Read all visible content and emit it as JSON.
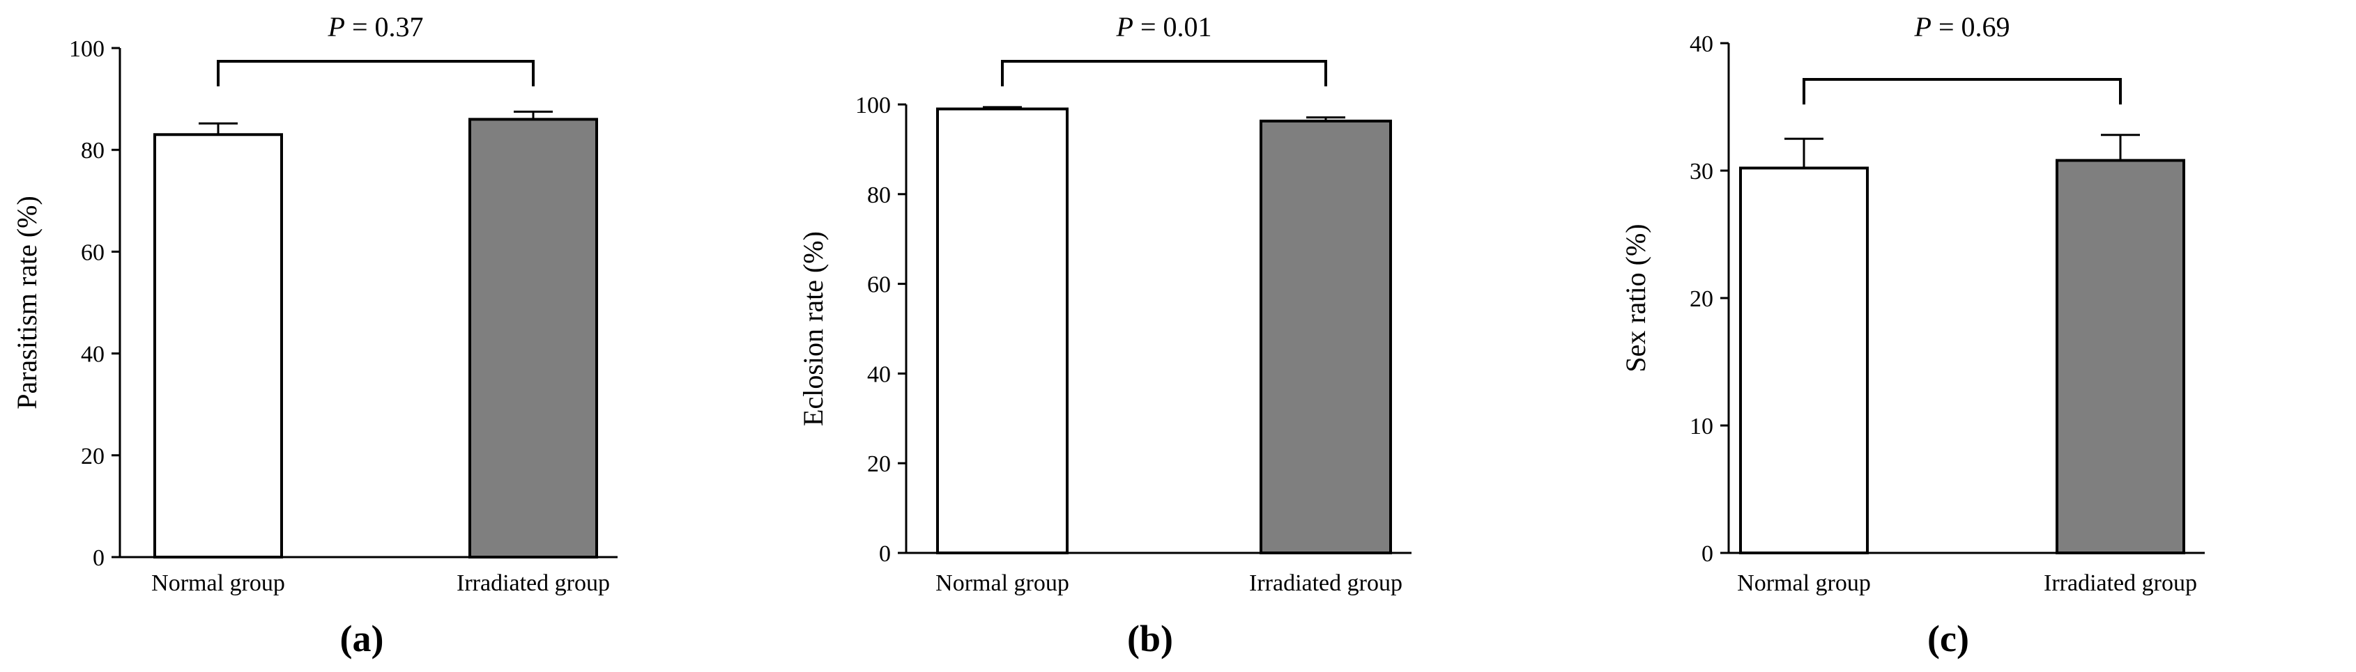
{
  "chart_data": [
    {
      "type": "bar",
      "panel_label": "(a)",
      "categories": [
        "Normal group",
        "Irradiated group"
      ],
      "values": [
        83,
        86
      ],
      "errors": [
        2.2,
        1.5
      ],
      "bar_colors": [
        "#ffffff",
        "#7f7f7f"
      ],
      "ylabel": "Parasitism rate (%)",
      "ylim": [
        0,
        100
      ],
      "yticks": [
        0,
        20,
        40,
        60,
        80,
        100
      ],
      "annotation": {
        "italic": "P",
        "text": " = 0.37"
      }
    },
    {
      "type": "bar",
      "panel_label": "(b)",
      "categories": [
        "Normal group",
        "Irradiated group"
      ],
      "values": [
        99,
        96.3
      ],
      "errors": [
        0.4,
        0.8
      ],
      "bar_colors": [
        "#ffffff",
        "#7f7f7f"
      ],
      "ylabel": "Eclosion rate (%)",
      "ylim": [
        0,
        100
      ],
      "yticks": [
        0,
        20,
        40,
        60,
        80,
        100
      ],
      "annotation": {
        "italic": "P",
        "text": " = 0.01"
      }
    },
    {
      "type": "bar",
      "panel_label": "(c)",
      "categories": [
        "Normal group",
        "Irradiated group"
      ],
      "values": [
        30.2,
        30.8
      ],
      "errors": [
        2.3,
        2.0
      ],
      "bar_colors": [
        "#ffffff",
        "#7f7f7f"
      ],
      "ylabel": "Sex ratio (%)",
      "ylim": [
        0,
        40
      ],
      "yticks": [
        0,
        10,
        20,
        30,
        40
      ],
      "annotation": {
        "italic": "P",
        "text": " = 0.69"
      }
    }
  ]
}
